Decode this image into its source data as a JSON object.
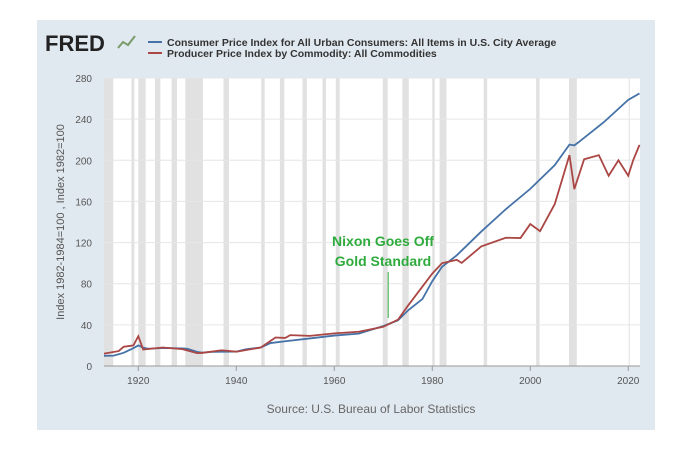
{
  "chart_data": {
    "type": "line",
    "logo": "FRED",
    "y_label": "Index 1982-1984=100 , Index 1982=100",
    "source": "Source: U.S. Bureau of Labor Statistics",
    "xlim": [
      1913,
      2022.4
    ],
    "xticks": [
      1920,
      1940,
      1960,
      1980,
      2000,
      2020
    ],
    "ylim": [
      0,
      280
    ],
    "yticks": [
      0,
      40,
      80,
      120,
      160,
      200,
      240,
      280
    ],
    "grid": true,
    "recessions": [
      [
        1913.0,
        1914.9
      ],
      [
        1918.6,
        1919.2
      ],
      [
        1920.0,
        1921.5
      ],
      [
        1923.4,
        1924.5
      ],
      [
        1926.8,
        1927.9
      ],
      [
        1929.6,
        1933.2
      ],
      [
        1937.4,
        1938.5
      ],
      [
        1945.1,
        1945.8
      ],
      [
        1948.9,
        1949.8
      ],
      [
        1953.5,
        1954.4
      ],
      [
        1957.6,
        1958.3
      ],
      [
        1960.3,
        1961.1
      ],
      [
        1969.9,
        1970.9
      ],
      [
        1973.9,
        1975.2
      ],
      [
        1980.0,
        1980.5
      ],
      [
        1981.5,
        1982.9
      ],
      [
        1990.5,
        1991.2
      ],
      [
        2001.2,
        2001.9
      ],
      [
        2007.9,
        2009.5
      ],
      [
        2020.1,
        2020.3
      ]
    ],
    "annotation": {
      "lines": [
        "Nixon Goes Off",
        "Gold Standard"
      ],
      "x": 1971,
      "color": "#2eab3c"
    },
    "series": [
      {
        "name": "Consumer Price Index for All Urban Consumers: All Items in U.S. City Average",
        "color": "#4572a7",
        "x": [
          1913,
          1915,
          1917,
          1918,
          1919,
          1920,
          1921,
          1922,
          1925,
          1929,
          1930,
          1932,
          1933,
          1935,
          1940,
          1942,
          1945,
          1947,
          1950,
          1955,
          1960,
          1965,
          1970,
          1973,
          1975,
          1978,
          1980,
          1982,
          1985,
          1990,
          1995,
          2000,
          2005,
          2008,
          2009,
          2010,
          2015,
          2020,
          2022.3
        ],
        "values": [
          9.9,
          10.1,
          12.8,
          15.1,
          17.3,
          20.0,
          17.9,
          16.8,
          17.5,
          17.1,
          16.7,
          13.7,
          13.0,
          13.7,
          14.0,
          16.3,
          18.0,
          22.3,
          24.1,
          26.8,
          29.6,
          31.5,
          38.8,
          44.4,
          53.8,
          65.2,
          82.4,
          96.5,
          107.6,
          130.7,
          152.4,
          172.2,
          195.3,
          215.3,
          214.5,
          218.1,
          237.0,
          258.8,
          265
        ]
      },
      {
        "name": "Producer Price Index by Commodity: All Commodities",
        "color": "#aa4643",
        "x": [
          1913,
          1916,
          1917,
          1919,
          1920,
          1921,
          1922,
          1925,
          1929,
          1932,
          1933,
          1937,
          1940,
          1945,
          1948,
          1950,
          1951,
          1955,
          1960,
          1965,
          1970,
          1973,
          1975,
          1980,
          1982,
          1985,
          1986,
          1990,
          1995,
          1998,
          2000,
          2002,
          2005,
          2008,
          2009,
          2011,
          2014,
          2016,
          2018,
          2020,
          2021,
          2022.3
        ],
        "values": [
          12.0,
          14.5,
          18.7,
          20.0,
          29.0,
          16.0,
          16.5,
          18.0,
          16.4,
          12.5,
          12.7,
          15.3,
          13.9,
          18.0,
          27.7,
          27.3,
          30.0,
          29.3,
          31.7,
          33.3,
          38.1,
          45.0,
          58.4,
          89.8,
          100,
          103.2,
          100.2,
          116.3,
          124.7,
          124.4,
          138,
          131.1,
          157.4,
          205,
          172,
          201,
          205,
          185,
          200,
          185,
          200,
          215
        ]
      }
    ]
  }
}
